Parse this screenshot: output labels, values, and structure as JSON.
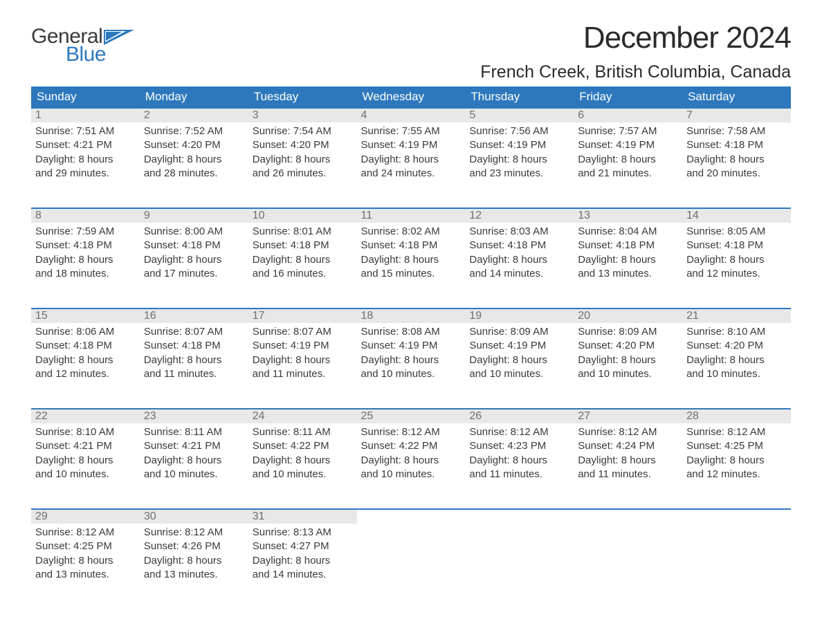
{
  "logo": {
    "word1": "General",
    "word2": "Blue",
    "text_color": "#3a3a3a",
    "accent_color": "#2d78bd"
  },
  "title": "December 2024",
  "location": "French Creek, British Columbia, Canada",
  "colors": {
    "header_bg": "#2d78bd",
    "header_text": "#ffffff",
    "row_border": "#2d78bd",
    "daynum_bg": "#e8e8e8",
    "daynum_text": "#6e6e6e",
    "body_text": "#3a3a3a",
    "page_bg": "#ffffff"
  },
  "fonts": {
    "title_pt": 44,
    "location_pt": 25,
    "header_pt": 17,
    "daynum_pt": 16,
    "body_pt": 15
  },
  "day_headers": [
    "Sunday",
    "Monday",
    "Tuesday",
    "Wednesday",
    "Thursday",
    "Friday",
    "Saturday"
  ],
  "labels": {
    "sunrise": "Sunrise: ",
    "sunset": "Sunset: ",
    "daylight_prefix": "Daylight: ",
    "and": "and ",
    "minutes_suffix": " minutes."
  },
  "weeks": [
    [
      {
        "n": "1",
        "sunrise": "7:51 AM",
        "sunset": "4:21 PM",
        "dl_h": "8 hours",
        "dl_m": "29"
      },
      {
        "n": "2",
        "sunrise": "7:52 AM",
        "sunset": "4:20 PM",
        "dl_h": "8 hours",
        "dl_m": "28"
      },
      {
        "n": "3",
        "sunrise": "7:54 AM",
        "sunset": "4:20 PM",
        "dl_h": "8 hours",
        "dl_m": "26"
      },
      {
        "n": "4",
        "sunrise": "7:55 AM",
        "sunset": "4:19 PM",
        "dl_h": "8 hours",
        "dl_m": "24"
      },
      {
        "n": "5",
        "sunrise": "7:56 AM",
        "sunset": "4:19 PM",
        "dl_h": "8 hours",
        "dl_m": "23"
      },
      {
        "n": "6",
        "sunrise": "7:57 AM",
        "sunset": "4:19 PM",
        "dl_h": "8 hours",
        "dl_m": "21"
      },
      {
        "n": "7",
        "sunrise": "7:58 AM",
        "sunset": "4:18 PM",
        "dl_h": "8 hours",
        "dl_m": "20"
      }
    ],
    [
      {
        "n": "8",
        "sunrise": "7:59 AM",
        "sunset": "4:18 PM",
        "dl_h": "8 hours",
        "dl_m": "18"
      },
      {
        "n": "9",
        "sunrise": "8:00 AM",
        "sunset": "4:18 PM",
        "dl_h": "8 hours",
        "dl_m": "17"
      },
      {
        "n": "10",
        "sunrise": "8:01 AM",
        "sunset": "4:18 PM",
        "dl_h": "8 hours",
        "dl_m": "16"
      },
      {
        "n": "11",
        "sunrise": "8:02 AM",
        "sunset": "4:18 PM",
        "dl_h": "8 hours",
        "dl_m": "15"
      },
      {
        "n": "12",
        "sunrise": "8:03 AM",
        "sunset": "4:18 PM",
        "dl_h": "8 hours",
        "dl_m": "14"
      },
      {
        "n": "13",
        "sunrise": "8:04 AM",
        "sunset": "4:18 PM",
        "dl_h": "8 hours",
        "dl_m": "13"
      },
      {
        "n": "14",
        "sunrise": "8:05 AM",
        "sunset": "4:18 PM",
        "dl_h": "8 hours",
        "dl_m": "12"
      }
    ],
    [
      {
        "n": "15",
        "sunrise": "8:06 AM",
        "sunset": "4:18 PM",
        "dl_h": "8 hours",
        "dl_m": "12"
      },
      {
        "n": "16",
        "sunrise": "8:07 AM",
        "sunset": "4:18 PM",
        "dl_h": "8 hours",
        "dl_m": "11"
      },
      {
        "n": "17",
        "sunrise": "8:07 AM",
        "sunset": "4:19 PM",
        "dl_h": "8 hours",
        "dl_m": "11"
      },
      {
        "n": "18",
        "sunrise": "8:08 AM",
        "sunset": "4:19 PM",
        "dl_h": "8 hours",
        "dl_m": "10"
      },
      {
        "n": "19",
        "sunrise": "8:09 AM",
        "sunset": "4:19 PM",
        "dl_h": "8 hours",
        "dl_m": "10"
      },
      {
        "n": "20",
        "sunrise": "8:09 AM",
        "sunset": "4:20 PM",
        "dl_h": "8 hours",
        "dl_m": "10"
      },
      {
        "n": "21",
        "sunrise": "8:10 AM",
        "sunset": "4:20 PM",
        "dl_h": "8 hours",
        "dl_m": "10"
      }
    ],
    [
      {
        "n": "22",
        "sunrise": "8:10 AM",
        "sunset": "4:21 PM",
        "dl_h": "8 hours",
        "dl_m": "10"
      },
      {
        "n": "23",
        "sunrise": "8:11 AM",
        "sunset": "4:21 PM",
        "dl_h": "8 hours",
        "dl_m": "10"
      },
      {
        "n": "24",
        "sunrise": "8:11 AM",
        "sunset": "4:22 PM",
        "dl_h": "8 hours",
        "dl_m": "10"
      },
      {
        "n": "25",
        "sunrise": "8:12 AM",
        "sunset": "4:22 PM",
        "dl_h": "8 hours",
        "dl_m": "10"
      },
      {
        "n": "26",
        "sunrise": "8:12 AM",
        "sunset": "4:23 PM",
        "dl_h": "8 hours",
        "dl_m": "11"
      },
      {
        "n": "27",
        "sunrise": "8:12 AM",
        "sunset": "4:24 PM",
        "dl_h": "8 hours",
        "dl_m": "11"
      },
      {
        "n": "28",
        "sunrise": "8:12 AM",
        "sunset": "4:25 PM",
        "dl_h": "8 hours",
        "dl_m": "12"
      }
    ],
    [
      {
        "n": "29",
        "sunrise": "8:12 AM",
        "sunset": "4:25 PM",
        "dl_h": "8 hours",
        "dl_m": "13"
      },
      {
        "n": "30",
        "sunrise": "8:12 AM",
        "sunset": "4:26 PM",
        "dl_h": "8 hours",
        "dl_m": "13"
      },
      {
        "n": "31",
        "sunrise": "8:13 AM",
        "sunset": "4:27 PM",
        "dl_h": "8 hours",
        "dl_m": "14"
      },
      null,
      null,
      null,
      null
    ]
  ]
}
